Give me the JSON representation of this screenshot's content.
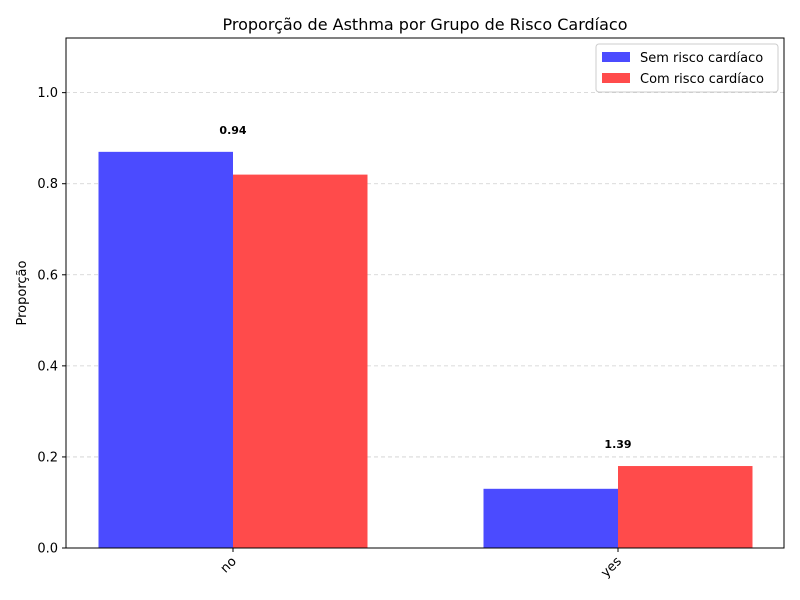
{
  "chart_data": {
    "type": "bar",
    "title": "Proporção de Asthma por Grupo de Risco Cardíaco",
    "xlabel": "",
    "ylabel": "Proporção",
    "categories": [
      "no",
      "yes"
    ],
    "series": [
      {
        "name": "Sem risco cardíaco",
        "values": [
          0.87,
          0.13
        ],
        "color": "#4b4bff"
      },
      {
        "name": "Com risco cardíaco",
        "values": [
          0.82,
          0.18
        ],
        "color": "#ff4b4b"
      }
    ],
    "ylim": [
      0,
      1.12
    ],
    "yticks": [
      "0.0",
      "0.2",
      "0.4",
      "0.6",
      "0.8",
      "1.0"
    ],
    "grid": true,
    "legend_position": "top-right",
    "annotations": [
      {
        "text": "0.94",
        "category": "no"
      },
      {
        "text": "1.39",
        "category": "yes"
      }
    ]
  }
}
